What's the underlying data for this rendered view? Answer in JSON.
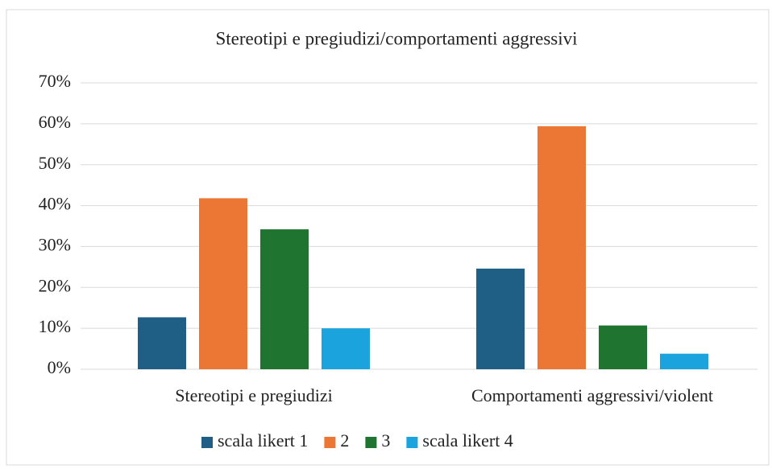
{
  "chart_data": {
    "type": "bar",
    "title": "Stereotipi e pregiudizi/comportamenti aggressivi",
    "categories": [
      "Stereotipi e pregiudizi",
      "Comportamenti aggressivi/violent"
    ],
    "series": [
      {
        "name": "scala likert 1",
        "color": "#1f5f86",
        "values": [
          12.7,
          24.6
        ]
      },
      {
        "name": "2",
        "color": "#ec7735",
        "values": [
          41.8,
          59.4
        ]
      },
      {
        "name": "3",
        "color": "#1f7430",
        "values": [
          34.2,
          10.7
        ]
      },
      {
        "name": "scala likert 4",
        "color": "#1aa3dd",
        "values": [
          10,
          3.8
        ]
      }
    ],
    "ylim": [
      0,
      70
    ],
    "yticks": [
      {
        "value": 0,
        "label": "0%"
      },
      {
        "value": 10,
        "label": "10%"
      },
      {
        "value": 20,
        "label": "20%"
      },
      {
        "value": 30,
        "label": "30%"
      },
      {
        "value": 40,
        "label": "40%"
      },
      {
        "value": 50,
        "label": "50%"
      },
      {
        "value": 60,
        "label": "60%"
      },
      {
        "value": 70,
        "label": "70%"
      }
    ],
    "grid": true,
    "legend": "bottom"
  }
}
